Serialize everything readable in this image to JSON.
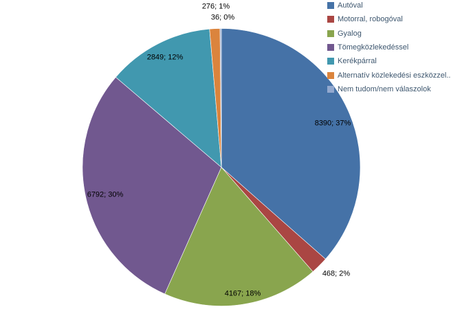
{
  "chart_data": {
    "type": "pie",
    "title": "",
    "categories": [
      "Autóval",
      "Motorral, robogóval",
      "Gyalog",
      "Tömegközlekedéssel",
      "Kerékpárral",
      "Alternatív közlekedési eszközzel...",
      "Nem tudom/nem válaszolok"
    ],
    "values": [
      8390,
      468,
      4167,
      6792,
      2849,
      276,
      36
    ],
    "percents": [
      37,
      2,
      18,
      30,
      12,
      1,
      0
    ],
    "data_labels": [
      "8390; 37%",
      "468; 2%",
      "4167; 18%",
      "6792; 30%",
      "2849; 12%",
      "276; 1%",
      "36; 0%"
    ],
    "colors": [
      "#4572A7",
      "#AA4643",
      "#89A54E",
      "#71588F",
      "#4198AF",
      "#DB843D",
      "#93A9CF"
    ],
    "label_separator": "; ",
    "start_angle_deg": 0,
    "direction": "clockwise",
    "legend_position": "top-right",
    "background_color": "#FFFFFF",
    "legend_text_color": "#3E576F",
    "data_label_color": "#000000"
  }
}
